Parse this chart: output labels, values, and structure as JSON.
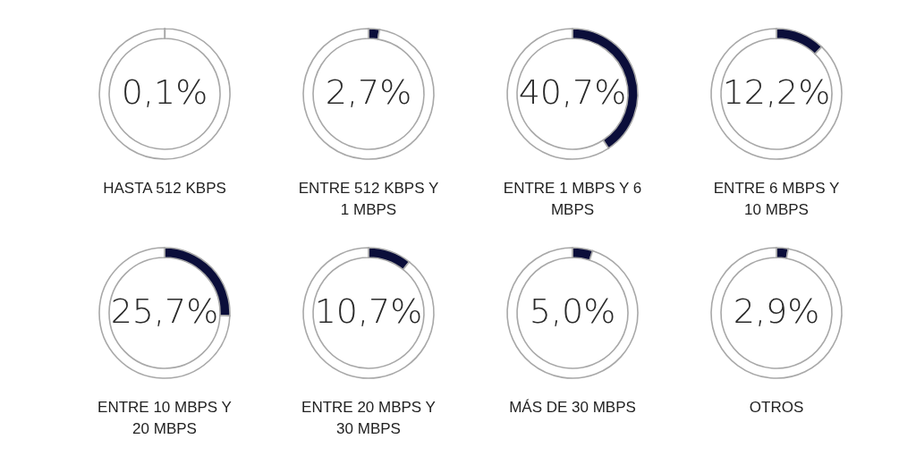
{
  "chart_data": [
    {
      "type": "donut",
      "title": "HASTA 512 KBPS",
      "categories": [
        null,
        null
      ],
      "values": [
        0.1,
        99.9
      ],
      "colors": [
        "#0b0e3a",
        "#ffffff"
      ],
      "value_labels": [
        "0,1%",
        null
      ]
    },
    {
      "type": "donut",
      "title": "ENTRE 512 KBPS Y 1 MBPS",
      "categories": [
        null,
        null
      ],
      "values": [
        2.7,
        97.3
      ],
      "colors": [
        "#0b0e3a",
        "#ffffff"
      ],
      "value_labels": [
        "2,7%",
        null
      ]
    },
    {
      "type": "donut",
      "title": "ENTRE 1 MBPS Y 6 MBPS",
      "categories": [
        null,
        null
      ],
      "values": [
        40.7,
        59.3
      ],
      "colors": [
        "#0b0e3a",
        "#ffffff"
      ],
      "value_labels": [
        "40,7%",
        null
      ]
    },
    {
      "type": "donut",
      "title": "ENTRE 6 MBPS Y 10 MBPS",
      "categories": [
        null,
        null
      ],
      "values": [
        12.2,
        87.8
      ],
      "colors": [
        "#0b0e3a",
        "#ffffff"
      ],
      "value_labels": [
        "12,2%",
        null
      ]
    },
    {
      "type": "donut",
      "title": "ENTRE 10 MBPS Y 20 MBPS",
      "categories": [
        null,
        null
      ],
      "values": [
        25.7,
        74.3
      ],
      "colors": [
        "#0b0e3a",
        "#ffffff"
      ],
      "value_labels": [
        "25,7%",
        null
      ]
    },
    {
      "type": "donut",
      "title": "ENTRE 20 MBPS Y 30 MBPS",
      "categories": [
        null,
        null
      ],
      "values": [
        10.7,
        89.3
      ],
      "colors": [
        "#0b0e3a",
        "#ffffff"
      ],
      "value_labels": [
        "10,7%",
        null
      ]
    },
    {
      "type": "donut",
      "title": "MÁS DE 30 MBPS",
      "categories": [
        null,
        null
      ],
      "values": [
        5.0,
        95.0
      ],
      "colors": [
        "#0b0e3a",
        "#ffffff"
      ],
      "value_labels": [
        "5,0%",
        null
      ]
    },
    {
      "type": "donut",
      "title": "OTROS",
      "categories": [
        null,
        null
      ],
      "values": [
        2.9,
        97.1
      ],
      "colors": [
        "#0b0e3a",
        "#ffffff"
      ],
      "value_labels": [
        "2,9%",
        null
      ]
    }
  ]
}
